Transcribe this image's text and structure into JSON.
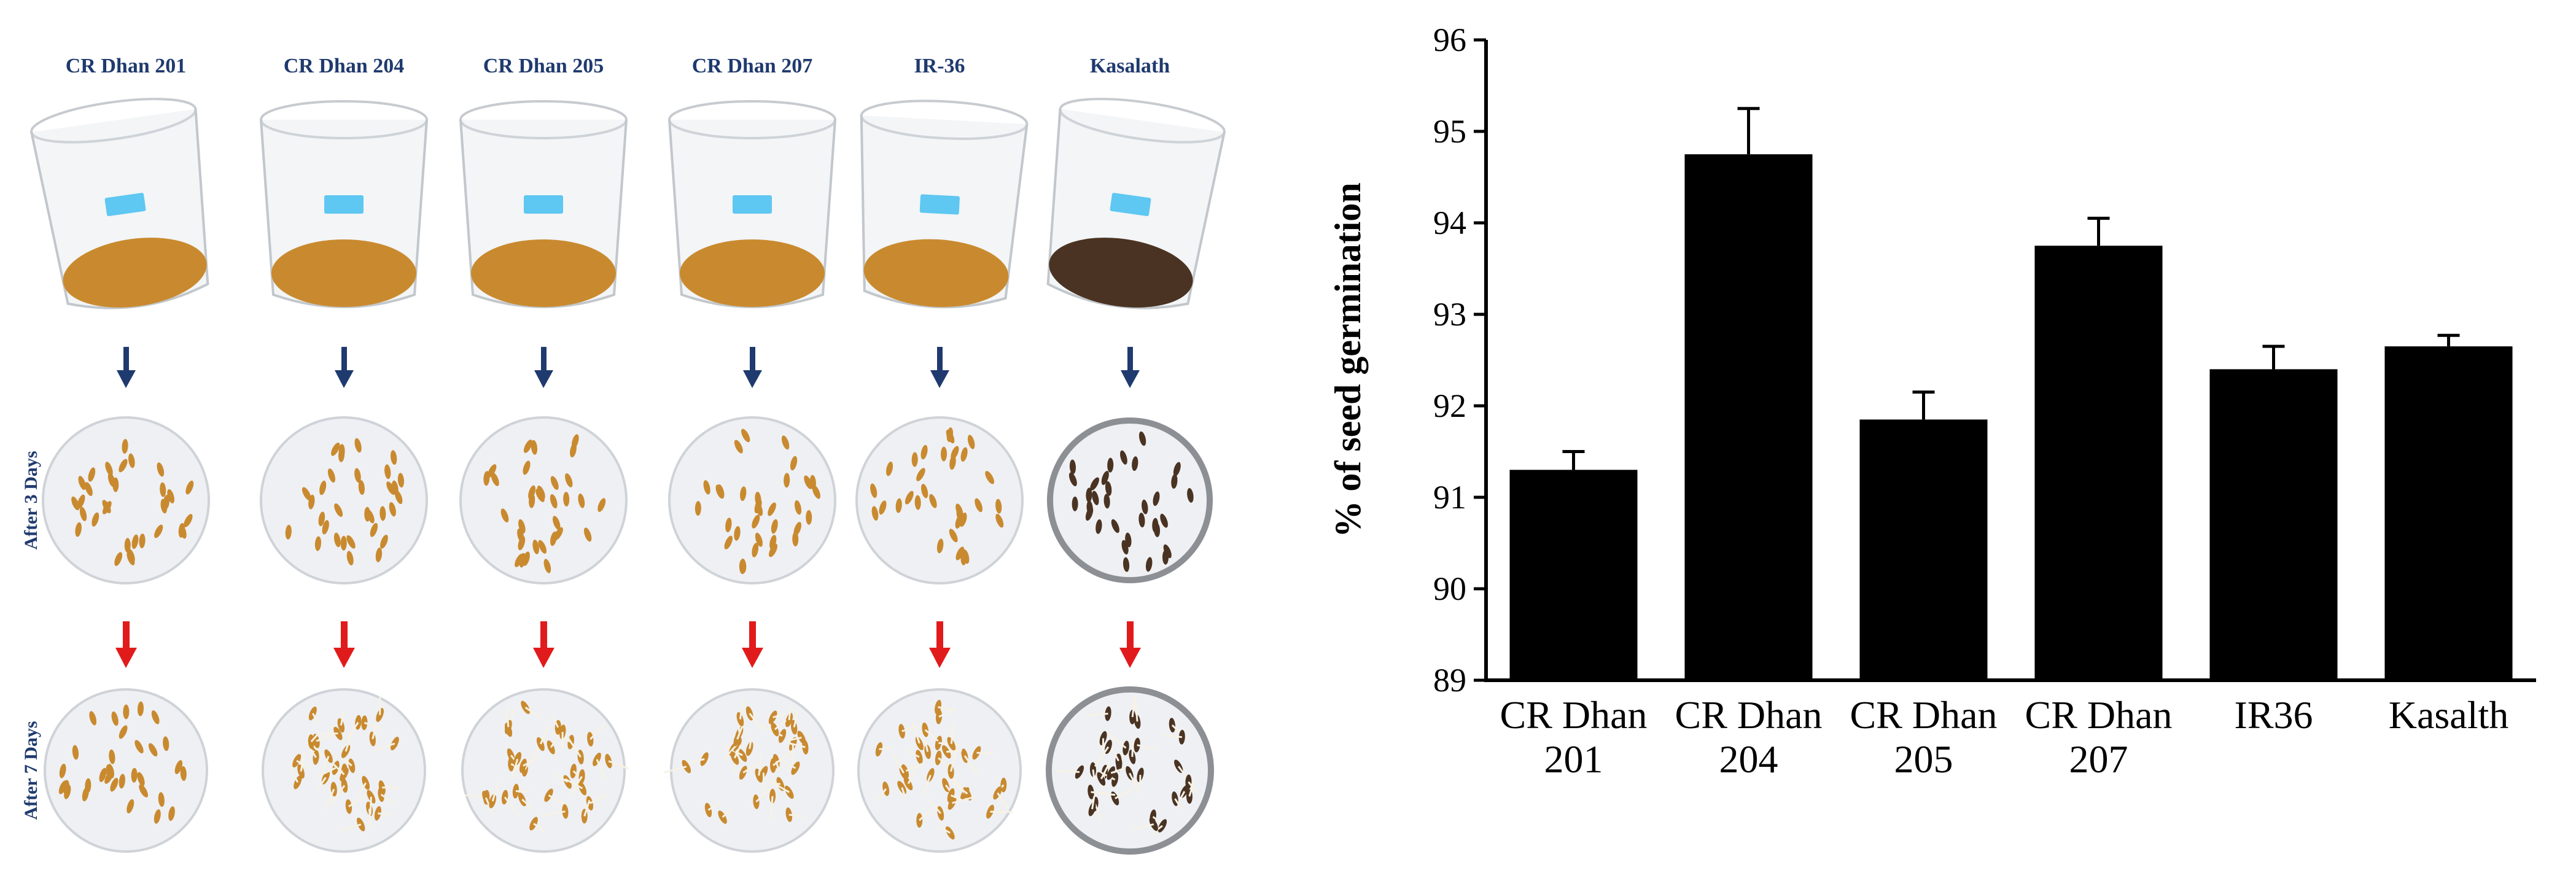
{
  "photo_panel": {
    "varieties": [
      "CR Dhan 201",
      "CR Dhan 204",
      "CR Dhan 205",
      "CR Dhan 207",
      "IR-36",
      "Kasalath"
    ],
    "row_labels": [
      "After 3 Days",
      "After 7 Days"
    ],
    "colors": {
      "label": "#1f3a6e",
      "arrow_blue": "#1f3a6e",
      "arrow_red": "#e11b1b",
      "seed": "#c98a2f",
      "seed_dark": "#4a3322",
      "dish": "#eef0f4"
    }
  },
  "chart_data": {
    "type": "bar",
    "title": "",
    "xlabel": "",
    "ylabel": "% of seed germination",
    "ylim": [
      89,
      96
    ],
    "yticks": [
      89,
      90,
      91,
      92,
      93,
      94,
      95,
      96
    ],
    "categories": [
      [
        "CR Dhan",
        "201"
      ],
      [
        "CR Dhan",
        "204"
      ],
      [
        "CR Dhan",
        "205"
      ],
      [
        "CR Dhan",
        "207"
      ],
      [
        "IR36"
      ],
      [
        "Kasalth"
      ]
    ],
    "values": [
      91.3,
      94.75,
      91.85,
      93.75,
      92.4,
      92.65
    ],
    "errors": [
      0.2,
      0.5,
      0.3,
      0.3,
      0.25,
      0.12
    ],
    "bar_color": "#000000"
  }
}
